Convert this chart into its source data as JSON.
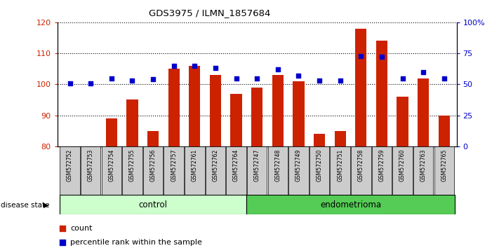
{
  "title": "GDS3975 / ILMN_1857684",
  "samples": [
    "GSM572752",
    "GSM572753",
    "GSM572754",
    "GSM572755",
    "GSM572756",
    "GSM572757",
    "GSM572761",
    "GSM572762",
    "GSM572764",
    "GSM572747",
    "GSM572748",
    "GSM572749",
    "GSM572750",
    "GSM572751",
    "GSM572758",
    "GSM572759",
    "GSM572760",
    "GSM572763",
    "GSM572765"
  ],
  "counts": [
    80,
    80,
    89,
    95,
    85,
    105,
    106,
    103,
    97,
    99,
    103,
    101,
    84,
    85,
    118,
    114,
    96,
    102,
    90
  ],
  "percentile_ranks": [
    51,
    51,
    55,
    53,
    54,
    65,
    65,
    63,
    55,
    55,
    62,
    57,
    53,
    53,
    73,
    72,
    55,
    60,
    55
  ],
  "control_count": 9,
  "endometrioma_count": 10,
  "ylim_left": [
    80,
    120
  ],
  "ylim_right": [
    0,
    100
  ],
  "yticks_left": [
    80,
    90,
    100,
    110,
    120
  ],
  "yticks_right": [
    0,
    25,
    50,
    75,
    100
  ],
  "ytick_labels_right": [
    "0",
    "25",
    "50",
    "75",
    "100%"
  ],
  "bar_color": "#cc2200",
  "dot_color": "#0000cc",
  "control_bg": "#ccffcc",
  "endometrioma_bg": "#55cc55",
  "sample_bg": "#cccccc",
  "legend_count_label": "count",
  "legend_pct_label": "percentile rank within the sample",
  "disease_state_label": "disease state",
  "control_label": "control",
  "endometrioma_label": "endometrioma"
}
